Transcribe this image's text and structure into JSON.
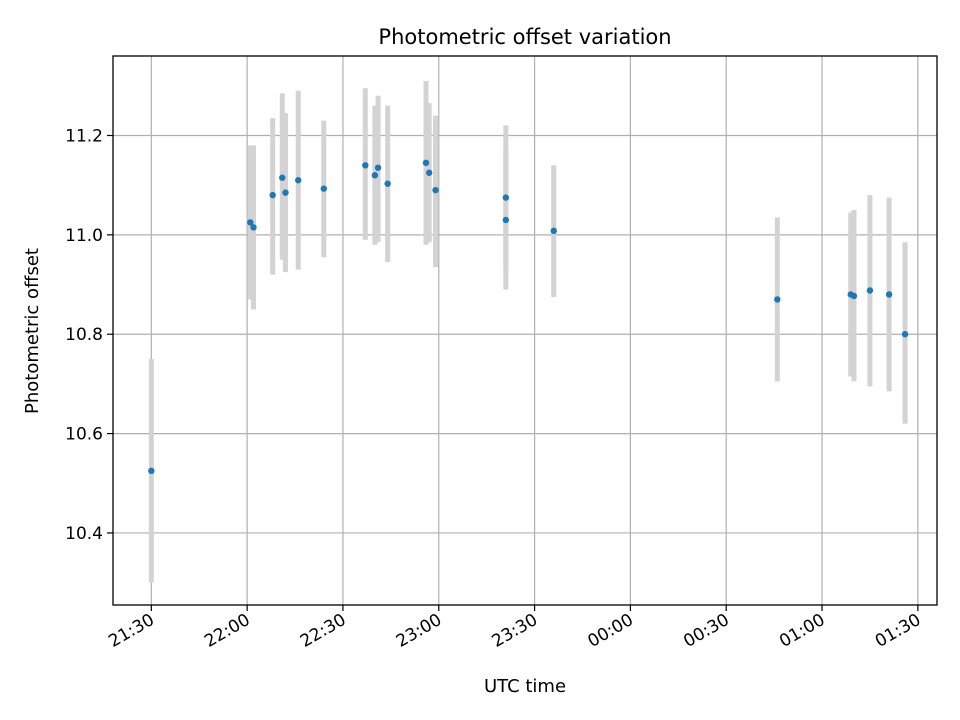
{
  "chart_data": {
    "type": "scatter",
    "title": "Photometric offset variation",
    "xlabel": "UTC time",
    "ylabel": "Photometric offset",
    "x_scale": "time",
    "xlim": [
      "21:18",
      "01:36"
    ],
    "ylim": [
      10.255,
      11.36
    ],
    "xticks": [
      "21:30",
      "22:00",
      "22:30",
      "23:00",
      "23:30",
      "00:00",
      "00:30",
      "01:00",
      "01:30"
    ],
    "yticks": [
      10.4,
      10.6,
      10.8,
      11.0,
      11.2
    ],
    "grid": true,
    "legend": false,
    "colors": {
      "marker": "#1f77b4",
      "errorbar": "#d3d3d3",
      "grid": "#b0b0b0"
    },
    "points": [
      {
        "x": "21:30",
        "y": 10.525,
        "ylo": 10.3,
        "yhi": 10.75
      },
      {
        "x": "22:01",
        "y": 11.025,
        "ylo": 10.87,
        "yhi": 11.18
      },
      {
        "x": "22:02",
        "y": 11.015,
        "ylo": 10.85,
        "yhi": 11.18
      },
      {
        "x": "22:08",
        "y": 11.08,
        "ylo": 10.92,
        "yhi": 11.235
      },
      {
        "x": "22:11",
        "y": 11.115,
        "ylo": 10.95,
        "yhi": 11.285
      },
      {
        "x": "22:12",
        "y": 11.085,
        "ylo": 10.925,
        "yhi": 11.245
      },
      {
        "x": "22:16",
        "y": 11.11,
        "ylo": 10.93,
        "yhi": 11.29
      },
      {
        "x": "22:24",
        "y": 11.093,
        "ylo": 10.955,
        "yhi": 11.23
      },
      {
        "x": "22:37",
        "y": 11.14,
        "ylo": 10.99,
        "yhi": 11.295
      },
      {
        "x": "22:40",
        "y": 11.12,
        "ylo": 10.98,
        "yhi": 11.26
      },
      {
        "x": "22:41",
        "y": 11.135,
        "ylo": 10.985,
        "yhi": 11.28
      },
      {
        "x": "22:44",
        "y": 11.103,
        "ylo": 10.945,
        "yhi": 11.26
      },
      {
        "x": "22:56",
        "y": 11.145,
        "ylo": 10.98,
        "yhi": 11.31
      },
      {
        "x": "22:57",
        "y": 11.125,
        "ylo": 10.985,
        "yhi": 11.265
      },
      {
        "x": "22:59",
        "y": 11.09,
        "ylo": 10.935,
        "yhi": 11.24
      },
      {
        "x": "23:21",
        "y": 11.03,
        "ylo": 10.89,
        "yhi": 11.175
      },
      {
        "x": "23:21",
        "y": 11.075,
        "ylo": 10.935,
        "yhi": 11.22
      },
      {
        "x": "23:36",
        "y": 11.008,
        "ylo": 10.875,
        "yhi": 11.14
      },
      {
        "x": "00:46",
        "y": 10.87,
        "ylo": 10.705,
        "yhi": 11.035
      },
      {
        "x": "01:09",
        "y": 10.88,
        "ylo": 10.715,
        "yhi": 11.045
      },
      {
        "x": "01:10",
        "y": 10.877,
        "ylo": 10.705,
        "yhi": 11.05
      },
      {
        "x": "01:15",
        "y": 10.888,
        "ylo": 10.695,
        "yhi": 11.08
      },
      {
        "x": "01:21",
        "y": 10.88,
        "ylo": 10.685,
        "yhi": 11.075
      },
      {
        "x": "01:26",
        "y": 10.8,
        "ylo": 10.62,
        "yhi": 10.985
      }
    ]
  }
}
